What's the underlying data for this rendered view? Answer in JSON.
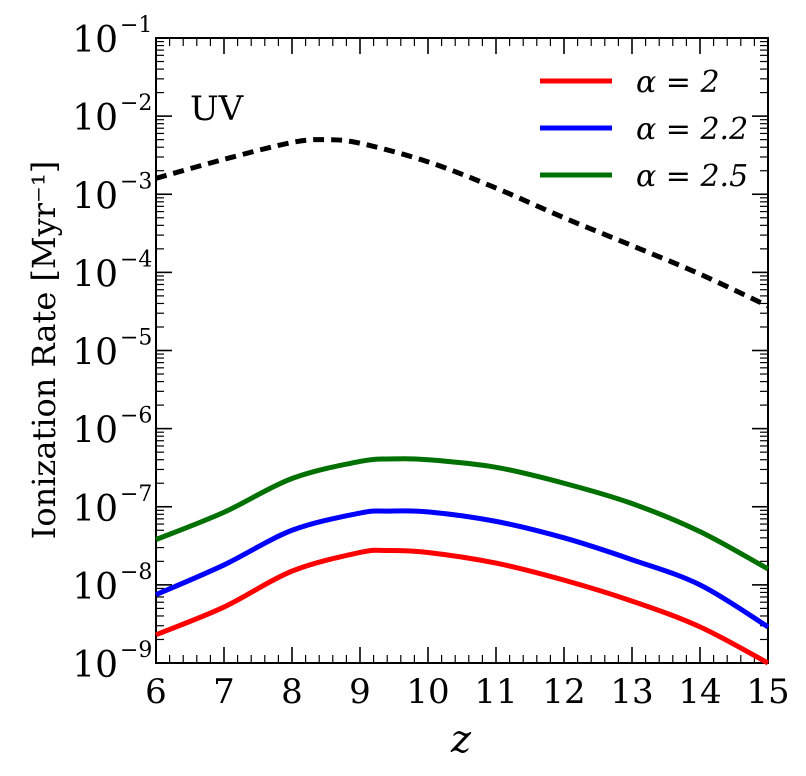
{
  "chart_data": {
    "type": "line",
    "annotation": "UV",
    "xlabel": "z",
    "ylabel": "Ionization Rate [Myr⁻¹]",
    "xlim": [
      6,
      15
    ],
    "ylim": [
      1e-09,
      0.1
    ],
    "yscale": "log",
    "grid": false,
    "legend_position": "top-right",
    "x_ticks": [
      6,
      7,
      8,
      9,
      10,
      11,
      12,
      13,
      14,
      15
    ],
    "y_ticks": [
      {
        "base": "10",
        "exp": "−9",
        "value": 1e-09
      },
      {
        "base": "10",
        "exp": "−8",
        "value": 1e-08
      },
      {
        "base": "10",
        "exp": "−7",
        "value": 1e-07
      },
      {
        "base": "10",
        "exp": "−6",
        "value": 1e-06
      },
      {
        "base": "10",
        "exp": "−5",
        "value": 1e-05
      },
      {
        "base": "10",
        "exp": "−4",
        "value": 0.0001
      },
      {
        "base": "10",
        "exp": "−3",
        "value": 0.001
      },
      {
        "base": "10",
        "exp": "−2",
        "value": 0.01
      },
      {
        "base": "10",
        "exp": "−1",
        "value": 0.1
      }
    ],
    "series": [
      {
        "name": "α = 2",
        "color": "#ff0000",
        "style": "solid",
        "legend": true,
        "x": [
          6,
          7,
          8,
          9,
          9.4,
          10,
          11,
          12,
          13,
          14,
          15
        ],
        "y": [
          2.3e-09,
          5.2e-09,
          1.5e-08,
          2.6e-08,
          2.75e-08,
          2.6e-08,
          1.9e-08,
          1.15e-08,
          6.2e-09,
          2.9e-09,
          1e-09
        ]
      },
      {
        "name": "α = 2.2",
        "color": "#0000ff",
        "style": "solid",
        "legend": true,
        "x": [
          6,
          7,
          8,
          9,
          9.4,
          10,
          11,
          12,
          13,
          14,
          15
        ],
        "y": [
          7.5e-09,
          1.8e-08,
          5e-08,
          8.3e-08,
          8.8e-08,
          8.6e-08,
          6.5e-08,
          4e-08,
          2.1e-08,
          1e-08,
          2.9e-09
        ]
      },
      {
        "name": "α = 2.5",
        "color": "#007000",
        "style": "solid",
        "legend": true,
        "x": [
          6,
          7,
          8,
          9,
          9.5,
          10,
          11,
          12,
          13,
          14,
          15
        ],
        "y": [
          3.8e-08,
          8.5e-08,
          2.3e-07,
          3.8e-07,
          4.1e-07,
          4e-07,
          3.2e-07,
          2e-07,
          1.1e-07,
          4.8e-08,
          1.6e-08
        ]
      },
      {
        "color": "#000000",
        "style": "dashed",
        "legend": false,
        "x": [
          6,
          7,
          8,
          8.5,
          9,
          10,
          11,
          12,
          13,
          14,
          15
        ],
        "y": [
          0.0016,
          0.0028,
          0.0046,
          0.005,
          0.0045,
          0.0026,
          0.0012,
          0.0005,
          0.00022,
          9.5e-05,
          3.7e-05
        ]
      }
    ]
  }
}
